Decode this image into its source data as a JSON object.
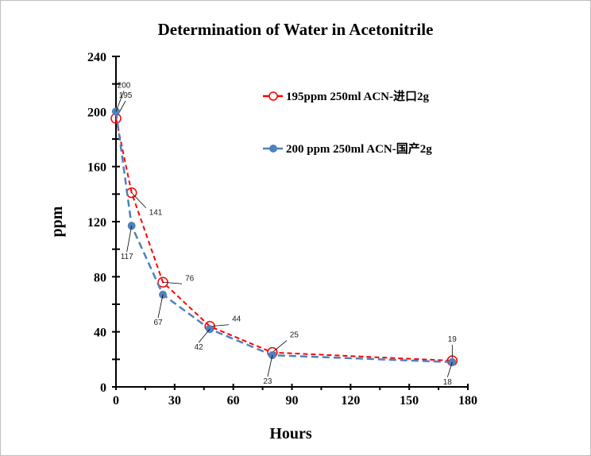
{
  "chart_data": {
    "type": "line",
    "title": "Determination of Water in Acetonitrile",
    "xlabel": "Hours",
    "ylabel": "ppm",
    "xlim": [
      0,
      180
    ],
    "ylim": [
      0,
      240
    ],
    "xticks": [
      0,
      30,
      60,
      90,
      120,
      150,
      180
    ],
    "yticks": [
      0,
      40,
      80,
      120,
      160,
      200,
      240
    ],
    "grid": false,
    "legend": "top-right",
    "series": [
      {
        "name": "195ppm  250ml ACN-进口2g",
        "color": "#ff0000",
        "marker": "open-circle",
        "line": "dashed",
        "x": [
          0,
          8,
          24,
          48,
          80,
          172
        ],
        "y": [
          195,
          141,
          76,
          44,
          25,
          19
        ]
      },
      {
        "name": "200 ppm 250ml ACN-国产2g",
        "color": "#4f81bd",
        "marker": "filled-circle",
        "line": "dashed",
        "x": [
          0,
          8,
          24,
          48,
          80,
          172
        ],
        "y": [
          200,
          117,
          67,
          42,
          23,
          18
        ]
      }
    ]
  }
}
